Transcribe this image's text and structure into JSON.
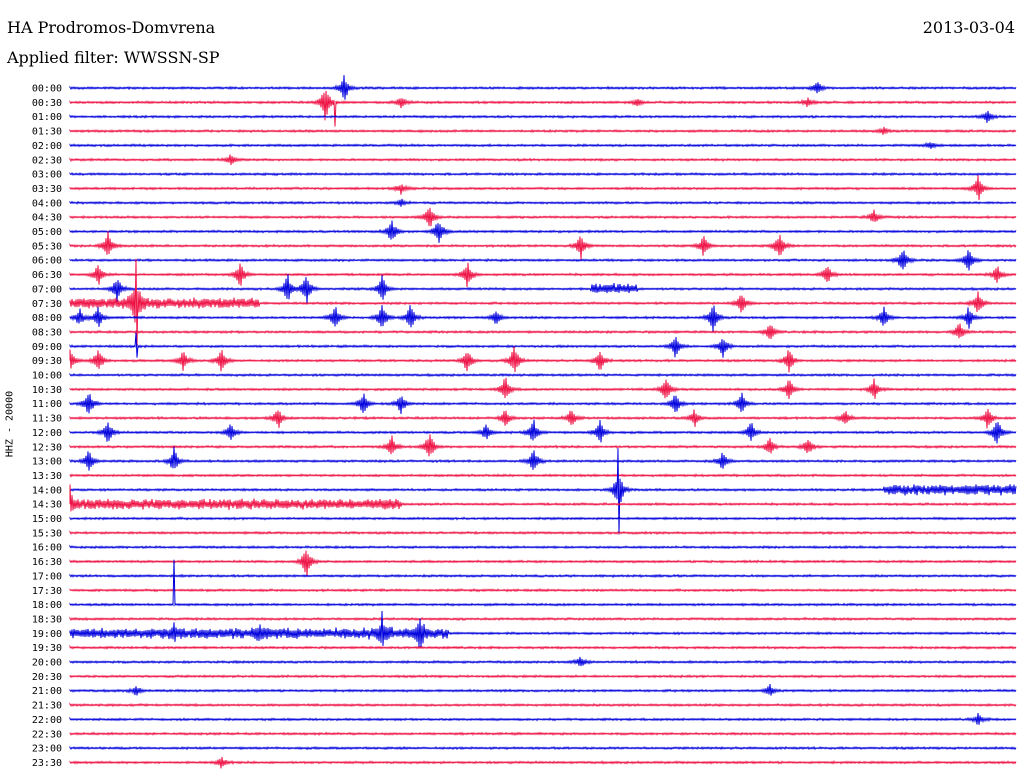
{
  "header": {
    "station": "HA Prodromos-Domvrena",
    "date": "2013-03-04",
    "filter": "Applied filter: WWSSN-SP"
  },
  "colors": {
    "trace_a": "#0000dd",
    "trace_b": "#ee1144",
    "background": "#ffffff",
    "text": "#000000"
  },
  "chart_data": {
    "type": "line",
    "subtype": "helicorder-seismogram",
    "ylabel": "HHZ - 20000",
    "row_labels": [
      "00:00",
      "00:30",
      "01:00",
      "01:30",
      "02:00",
      "02:30",
      "03:00",
      "03:30",
      "04:00",
      "04:30",
      "05:00",
      "05:30",
      "06:00",
      "06:30",
      "07:00",
      "07:30",
      "08:00",
      "08:30",
      "09:00",
      "09:30",
      "10:00",
      "10:30",
      "11:00",
      "11:30",
      "12:00",
      "12:30",
      "13:00",
      "13:30",
      "14:00",
      "14:30",
      "15:00",
      "15:30",
      "16:00",
      "16:30",
      "17:00",
      "17:30",
      "18:00",
      "18:30",
      "19:00",
      "19:30",
      "20:00",
      "20:30",
      "21:00",
      "21:30",
      "22:00",
      "22:30",
      "23:00",
      "23:30"
    ],
    "row_colors_cycle": [
      "blue",
      "red"
    ],
    "row_duration_minutes": 30,
    "events": [
      {
        "row": 0,
        "t": 0.29,
        "a": 14
      },
      {
        "row": 0,
        "t": 0.79,
        "a": 8
      },
      {
        "row": 1,
        "t": 0.27,
        "a": 20
      },
      {
        "row": 1,
        "t": 0.35,
        "a": 6
      },
      {
        "row": 1,
        "t": 0.6,
        "a": 4
      },
      {
        "row": 1,
        "t": 0.78,
        "a": 5
      },
      {
        "row": 2,
        "t": 0.97,
        "a": 7
      },
      {
        "row": 3,
        "t": 0.86,
        "a": 4
      },
      {
        "row": 4,
        "t": 0.91,
        "a": 4
      },
      {
        "row": 5,
        "t": 0.17,
        "a": 6
      },
      {
        "row": 7,
        "t": 0.35,
        "a": 6
      },
      {
        "row": 7,
        "t": 0.96,
        "a": 14
      },
      {
        "row": 8,
        "t": 0.35,
        "a": 4
      },
      {
        "row": 9,
        "t": 0.38,
        "a": 14
      },
      {
        "row": 9,
        "t": 0.85,
        "a": 8
      },
      {
        "row": 10,
        "t": 0.34,
        "a": 14
      },
      {
        "row": 10,
        "t": 0.39,
        "a": 16
      },
      {
        "row": 11,
        "t": 0.04,
        "a": 16
      },
      {
        "row": 11,
        "t": 0.54,
        "a": 14
      },
      {
        "row": 11,
        "t": 0.67,
        "a": 12
      },
      {
        "row": 11,
        "t": 0.75,
        "a": 16
      },
      {
        "row": 12,
        "t": 0.88,
        "a": 14
      },
      {
        "row": 12,
        "t": 0.95,
        "a": 14
      },
      {
        "row": 13,
        "t": 0.03,
        "a": 12
      },
      {
        "row": 13,
        "t": 0.18,
        "a": 14
      },
      {
        "row": 13,
        "t": 0.42,
        "a": 14
      },
      {
        "row": 13,
        "t": 0.8,
        "a": 12
      },
      {
        "row": 13,
        "t": 0.98,
        "a": 10
      },
      {
        "row": 14,
        "t": 0.05,
        "a": 14
      },
      {
        "row": 14,
        "t": 0.23,
        "a": 16
      },
      {
        "row": 14,
        "t": 0.25,
        "a": 18
      },
      {
        "row": 14,
        "t": 0.33,
        "a": 14
      },
      {
        "row": 15,
        "t": 0.07,
        "a": 25
      },
      {
        "row": 15,
        "t": 0.71,
        "a": 12
      },
      {
        "row": 15,
        "t": 0.96,
        "a": 12
      },
      {
        "row": 16,
        "t": 0.01,
        "a": 10
      },
      {
        "row": 16,
        "t": 0.03,
        "a": 12
      },
      {
        "row": 16,
        "t": 0.28,
        "a": 14
      },
      {
        "row": 16,
        "t": 0.33,
        "a": 16
      },
      {
        "row": 16,
        "t": 0.36,
        "a": 14
      },
      {
        "row": 16,
        "t": 0.45,
        "a": 8
      },
      {
        "row": 16,
        "t": 0.68,
        "a": 16
      },
      {
        "row": 16,
        "t": 0.86,
        "a": 12
      },
      {
        "row": 16,
        "t": 0.95,
        "a": 12
      },
      {
        "row": 17,
        "t": 0.74,
        "a": 10
      },
      {
        "row": 17,
        "t": 0.94,
        "a": 10
      },
      {
        "row": 18,
        "t": 0.64,
        "a": 12
      },
      {
        "row": 18,
        "t": 0.69,
        "a": 12
      },
      {
        "row": 19,
        "t": 0.0,
        "a": 14
      },
      {
        "row": 19,
        "t": 0.03,
        "a": 14
      },
      {
        "row": 19,
        "t": 0.12,
        "a": 12
      },
      {
        "row": 19,
        "t": 0.16,
        "a": 12
      },
      {
        "row": 19,
        "t": 0.42,
        "a": 14
      },
      {
        "row": 19,
        "t": 0.47,
        "a": 18
      },
      {
        "row": 19,
        "t": 0.56,
        "a": 12
      },
      {
        "row": 19,
        "t": 0.76,
        "a": 14
      },
      {
        "row": 21,
        "t": 0.46,
        "a": 14
      },
      {
        "row": 21,
        "t": 0.63,
        "a": 14
      },
      {
        "row": 21,
        "t": 0.76,
        "a": 12
      },
      {
        "row": 21,
        "t": 0.85,
        "a": 12
      },
      {
        "row": 22,
        "t": 0.02,
        "a": 14
      },
      {
        "row": 22,
        "t": 0.31,
        "a": 12
      },
      {
        "row": 22,
        "t": 0.35,
        "a": 12
      },
      {
        "row": 22,
        "t": 0.64,
        "a": 12
      },
      {
        "row": 22,
        "t": 0.71,
        "a": 12
      },
      {
        "row": 23,
        "t": 0.22,
        "a": 12
      },
      {
        "row": 23,
        "t": 0.46,
        "a": 10
      },
      {
        "row": 23,
        "t": 0.53,
        "a": 10
      },
      {
        "row": 23,
        "t": 0.66,
        "a": 10
      },
      {
        "row": 23,
        "t": 0.82,
        "a": 8
      },
      {
        "row": 23,
        "t": 0.97,
        "a": 12
      },
      {
        "row": 24,
        "t": 0.04,
        "a": 12
      },
      {
        "row": 24,
        "t": 0.17,
        "a": 10
      },
      {
        "row": 24,
        "t": 0.44,
        "a": 10
      },
      {
        "row": 24,
        "t": 0.49,
        "a": 14
      },
      {
        "row": 24,
        "t": 0.56,
        "a": 14
      },
      {
        "row": 24,
        "t": 0.72,
        "a": 12
      },
      {
        "row": 24,
        "t": 0.98,
        "a": 16
      },
      {
        "row": 25,
        "t": 0.34,
        "a": 12
      },
      {
        "row": 25,
        "t": 0.38,
        "a": 16
      },
      {
        "row": 25,
        "t": 0.74,
        "a": 10
      },
      {
        "row": 25,
        "t": 0.78,
        "a": 10
      },
      {
        "row": 26,
        "t": 0.02,
        "a": 12
      },
      {
        "row": 26,
        "t": 0.11,
        "a": 14
      },
      {
        "row": 26,
        "t": 0.49,
        "a": 14
      },
      {
        "row": 26,
        "t": 0.69,
        "a": 10
      },
      {
        "row": 28,
        "t": 0.58,
        "a": 24
      },
      {
        "row": 29,
        "t": 0.0,
        "a": 8
      },
      {
        "row": 33,
        "t": 0.25,
        "a": 18
      },
      {
        "row": 38,
        "t": 0.11,
        "a": 8
      },
      {
        "row": 38,
        "t": 0.2,
        "a": 8
      },
      {
        "row": 38,
        "t": 0.33,
        "a": 12
      },
      {
        "row": 38,
        "t": 0.37,
        "a": 14
      },
      {
        "row": 40,
        "t": 0.54,
        "a": 6
      },
      {
        "row": 42,
        "t": 0.07,
        "a": 5
      },
      {
        "row": 42,
        "t": 0.74,
        "a": 6
      },
      {
        "row": 44,
        "t": 0.96,
        "a": 6
      },
      {
        "row": 47,
        "t": 0.16,
        "a": 6
      }
    ],
    "busy_segments": [
      {
        "row": 14,
        "t0": 0.55,
        "t1": 0.6
      },
      {
        "row": 15,
        "t0": 0.0,
        "t1": 0.2
      },
      {
        "row": 28,
        "t0": 0.86,
        "t1": 1.0
      },
      {
        "row": 29,
        "t0": 0.0,
        "t1": 0.35
      },
      {
        "row": 38,
        "t0": 0.0,
        "t1": 0.4
      }
    ],
    "spikes": [
      {
        "row": 1,
        "t": 0.28,
        "a": 28
      },
      {
        "row": 15,
        "t": 0.07,
        "a": 30
      },
      {
        "row": 18,
        "t": 0.07,
        "a": 16
      },
      {
        "row": 28,
        "t": 0.58,
        "a": 35
      },
      {
        "row": 29,
        "t": 0.0,
        "a": 18
      },
      {
        "row": 36,
        "t": 0.11,
        "a": 45
      },
      {
        "row": 38,
        "t": 0.33,
        "a": 16
      }
    ]
  }
}
